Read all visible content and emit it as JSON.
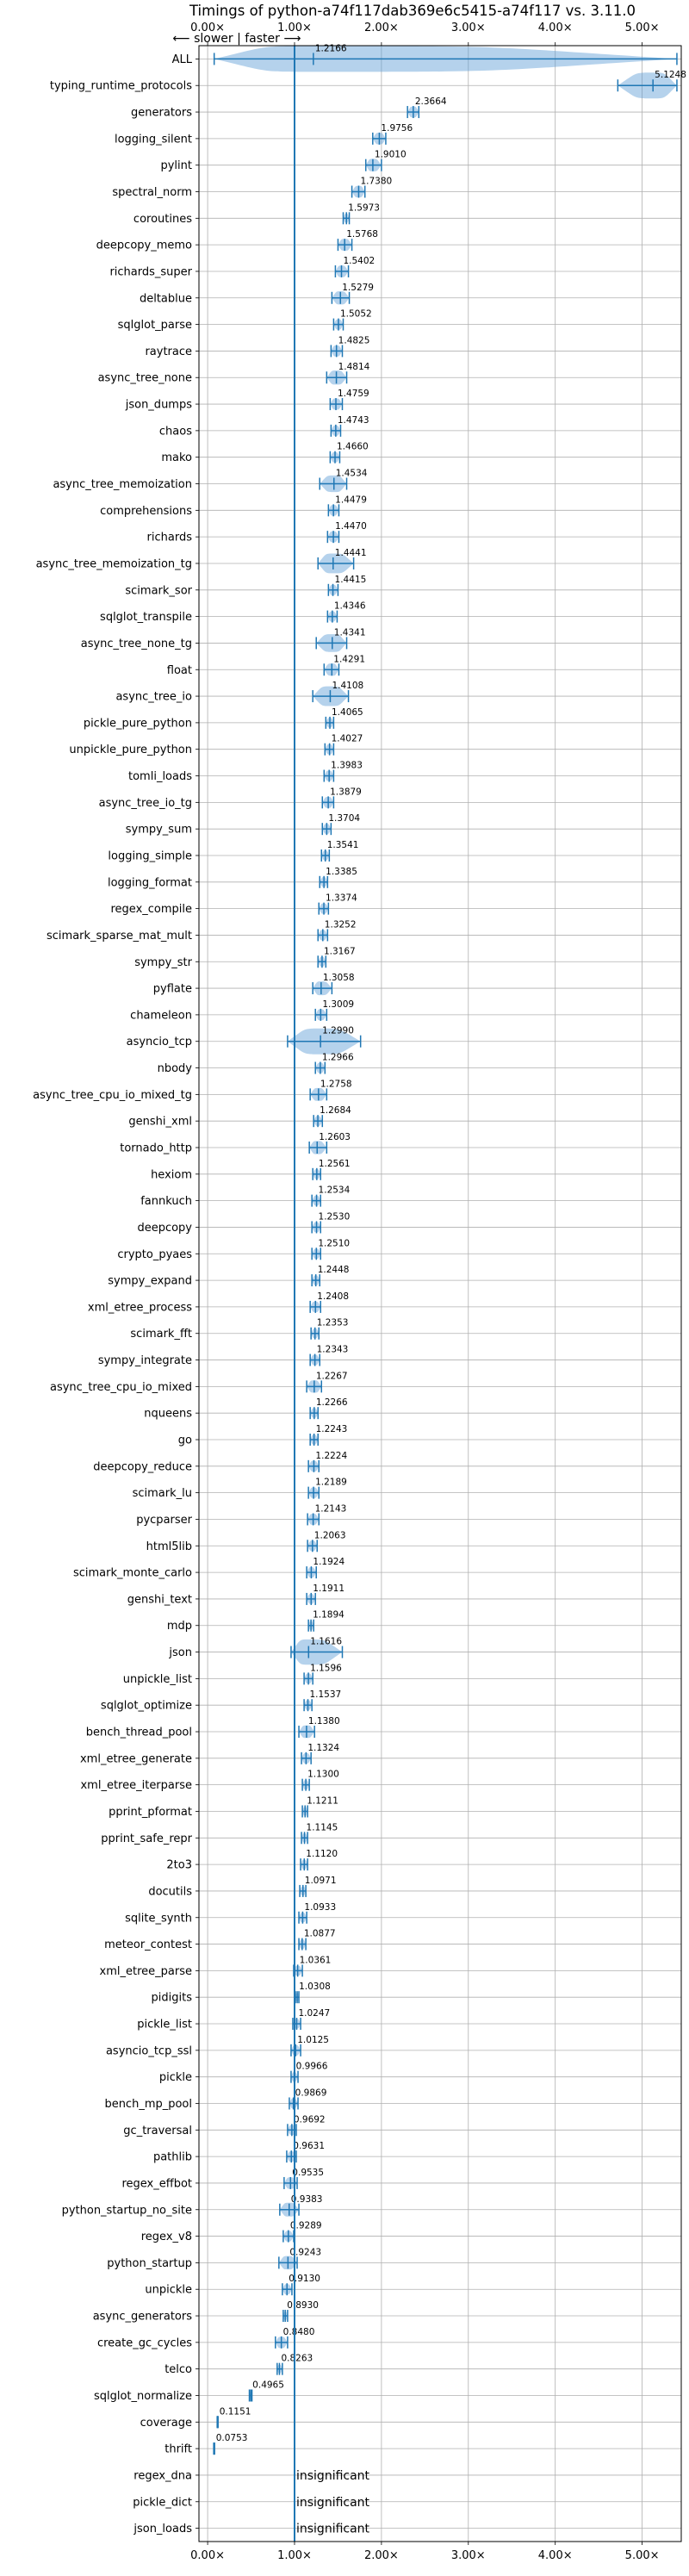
{
  "chart_data": {
    "type": "violin",
    "title": "Timings of python-a74f117dab369e6c5415-a74f117 vs. 3.11.0",
    "subtitle": "⟵ slower | faster ⟶",
    "xlabel": "",
    "ylabel": "",
    "xlim": [
      -0.1,
      5.45
    ],
    "x_ticks": [
      0.0,
      1.0,
      2.0,
      3.0,
      4.0,
      5.0
    ],
    "x_tick_labels": [
      "0.00×",
      "1.00×",
      "2.00×",
      "3.00×",
      "4.00×",
      "5.00×"
    ],
    "reference_line": 1.0,
    "grid": true,
    "colors": {
      "violin": "#5b9bd5",
      "line": "#1f77b4",
      "median": "#d62728"
    },
    "insignificant_label": "insignificant",
    "benchmarks": [
      {
        "name": "ALL",
        "value": 1.2166,
        "label": "1.2166",
        "min": 0.0753,
        "max": 5.4
      },
      {
        "name": "typing_runtime_protocols",
        "value": 5.1248,
        "label": "5.1248",
        "min": 4.72,
        "max": 5.4
      },
      {
        "name": "generators",
        "value": 2.3664,
        "label": "2.3664",
        "min": 2.3,
        "max": 2.43
      },
      {
        "name": "logging_silent",
        "value": 1.9756,
        "label": "1.9756",
        "min": 1.9,
        "max": 2.05
      },
      {
        "name": "pylint",
        "value": 1.901,
        "label": "1.9010",
        "min": 1.82,
        "max": 2.0
      },
      {
        "name": "spectral_norm",
        "value": 1.738,
        "label": "1.7380",
        "min": 1.66,
        "max": 1.81
      },
      {
        "name": "coroutines",
        "value": 1.5973,
        "label": "1.5973",
        "min": 1.56,
        "max": 1.63
      },
      {
        "name": "deepcopy_memo",
        "value": 1.5768,
        "label": "1.5768",
        "min": 1.5,
        "max": 1.66
      },
      {
        "name": "richards_super",
        "value": 1.5402,
        "label": "1.5402",
        "min": 1.47,
        "max": 1.62
      },
      {
        "name": "deltablue",
        "value": 1.5279,
        "label": "1.5279",
        "min": 1.43,
        "max": 1.63
      },
      {
        "name": "sqlglot_parse",
        "value": 1.5052,
        "label": "1.5052",
        "min": 1.45,
        "max": 1.56
      },
      {
        "name": "raytrace",
        "value": 1.4825,
        "label": "1.4825",
        "min": 1.42,
        "max": 1.55
      },
      {
        "name": "async_tree_none",
        "value": 1.4814,
        "label": "1.4814",
        "min": 1.37,
        "max": 1.6
      },
      {
        "name": "json_dumps",
        "value": 1.4759,
        "label": "1.4759",
        "min": 1.41,
        "max": 1.55
      },
      {
        "name": "chaos",
        "value": 1.4743,
        "label": "1.4743",
        "min": 1.42,
        "max": 1.53
      },
      {
        "name": "mako",
        "value": 1.466,
        "label": "1.4660",
        "min": 1.41,
        "max": 1.52
      },
      {
        "name": "async_tree_memoization",
        "value": 1.4534,
        "label": "1.4534",
        "min": 1.29,
        "max": 1.6
      },
      {
        "name": "comprehensions",
        "value": 1.4479,
        "label": "1.4479",
        "min": 1.39,
        "max": 1.51
      },
      {
        "name": "richards",
        "value": 1.447,
        "label": "1.4470",
        "min": 1.38,
        "max": 1.51
      },
      {
        "name": "async_tree_memoization_tg",
        "value": 1.4441,
        "label": "1.4441",
        "min": 1.27,
        "max": 1.68
      },
      {
        "name": "scimark_sor",
        "value": 1.4415,
        "label": "1.4415",
        "min": 1.39,
        "max": 1.5
      },
      {
        "name": "sqlglot_transpile",
        "value": 1.4346,
        "label": "1.4346",
        "min": 1.38,
        "max": 1.49
      },
      {
        "name": "async_tree_none_tg",
        "value": 1.4341,
        "label": "1.4341",
        "min": 1.25,
        "max": 1.6
      },
      {
        "name": "float",
        "value": 1.4291,
        "label": "1.4291",
        "min": 1.34,
        "max": 1.51
      },
      {
        "name": "async_tree_io",
        "value": 1.4108,
        "label": "1.4108",
        "min": 1.21,
        "max": 1.62
      },
      {
        "name": "pickle_pure_python",
        "value": 1.4065,
        "label": "1.4065",
        "min": 1.36,
        "max": 1.45
      },
      {
        "name": "unpickle_pure_python",
        "value": 1.4027,
        "label": "1.4027",
        "min": 1.35,
        "max": 1.45
      },
      {
        "name": "tomli_loads",
        "value": 1.3983,
        "label": "1.3983",
        "min": 1.34,
        "max": 1.45
      },
      {
        "name": "async_tree_io_tg",
        "value": 1.3879,
        "label": "1.3879",
        "min": 1.32,
        "max": 1.45
      },
      {
        "name": "sympy_sum",
        "value": 1.3704,
        "label": "1.3704",
        "min": 1.32,
        "max": 1.42
      },
      {
        "name": "logging_simple",
        "value": 1.3541,
        "label": "1.3541",
        "min": 1.31,
        "max": 1.4
      },
      {
        "name": "logging_format",
        "value": 1.3385,
        "label": "1.3385",
        "min": 1.29,
        "max": 1.38
      },
      {
        "name": "regex_compile",
        "value": 1.3374,
        "label": "1.3374",
        "min": 1.28,
        "max": 1.39
      },
      {
        "name": "scimark_sparse_mat_mult",
        "value": 1.3252,
        "label": "1.3252",
        "min": 1.27,
        "max": 1.38
      },
      {
        "name": "sympy_str",
        "value": 1.3167,
        "label": "1.3167",
        "min": 1.27,
        "max": 1.36
      },
      {
        "name": "pyflate",
        "value": 1.3058,
        "label": "1.3058",
        "min": 1.21,
        "max": 1.43
      },
      {
        "name": "chameleon",
        "value": 1.3009,
        "label": "1.3009",
        "min": 1.24,
        "max": 1.37
      },
      {
        "name": "asyncio_tcp",
        "value": 1.299,
        "label": "1.2990",
        "min": 0.92,
        "max": 1.76
      },
      {
        "name": "nbody",
        "value": 1.2966,
        "label": "1.2966",
        "min": 1.24,
        "max": 1.35
      },
      {
        "name": "async_tree_cpu_io_mixed_tg",
        "value": 1.2758,
        "label": "1.2758",
        "min": 1.18,
        "max": 1.37
      },
      {
        "name": "genshi_xml",
        "value": 1.2684,
        "label": "1.2684",
        "min": 1.22,
        "max": 1.32
      },
      {
        "name": "tornado_http",
        "value": 1.2603,
        "label": "1.2603",
        "min": 1.17,
        "max": 1.37
      },
      {
        "name": "hexiom",
        "value": 1.2561,
        "label": "1.2561",
        "min": 1.21,
        "max": 1.3
      },
      {
        "name": "fannkuch",
        "value": 1.2534,
        "label": "1.2534",
        "min": 1.2,
        "max": 1.3
      },
      {
        "name": "deepcopy",
        "value": 1.253,
        "label": "1.2530",
        "min": 1.2,
        "max": 1.3
      },
      {
        "name": "crypto_pyaes",
        "value": 1.251,
        "label": "1.2510",
        "min": 1.2,
        "max": 1.3
      },
      {
        "name": "sympy_expand",
        "value": 1.2448,
        "label": "1.2448",
        "min": 1.2,
        "max": 1.29
      },
      {
        "name": "xml_etree_process",
        "value": 1.2408,
        "label": "1.2408",
        "min": 1.18,
        "max": 1.3
      },
      {
        "name": "scimark_fft",
        "value": 1.2353,
        "label": "1.2353",
        "min": 1.19,
        "max": 1.28
      },
      {
        "name": "sympy_integrate",
        "value": 1.2343,
        "label": "1.2343",
        "min": 1.18,
        "max": 1.29
      },
      {
        "name": "async_tree_cpu_io_mixed",
        "value": 1.2267,
        "label": "1.2267",
        "min": 1.14,
        "max": 1.31
      },
      {
        "name": "nqueens",
        "value": 1.2266,
        "label": "1.2266",
        "min": 1.18,
        "max": 1.27
      },
      {
        "name": "go",
        "value": 1.2243,
        "label": "1.2243",
        "min": 1.18,
        "max": 1.27
      },
      {
        "name": "deepcopy_reduce",
        "value": 1.2224,
        "label": "1.2224",
        "min": 1.16,
        "max": 1.28
      },
      {
        "name": "scimark_lu",
        "value": 1.2189,
        "label": "1.2189",
        "min": 1.16,
        "max": 1.28
      },
      {
        "name": "pycparser",
        "value": 1.2143,
        "label": "1.2143",
        "min": 1.15,
        "max": 1.28
      },
      {
        "name": "html5lib",
        "value": 1.2063,
        "label": "1.2063",
        "min": 1.15,
        "max": 1.26
      },
      {
        "name": "scimark_monte_carlo",
        "value": 1.1924,
        "label": "1.1924",
        "min": 1.14,
        "max": 1.25
      },
      {
        "name": "genshi_text",
        "value": 1.1911,
        "label": "1.1911",
        "min": 1.14,
        "max": 1.24
      },
      {
        "name": "mdp",
        "value": 1.1894,
        "label": "1.1894",
        "min": 1.16,
        "max": 1.22
      },
      {
        "name": "json",
        "value": 1.1616,
        "label": "1.1616",
        "min": 0.96,
        "max": 1.55
      },
      {
        "name": "unpickle_list",
        "value": 1.1596,
        "label": "1.1596",
        "min": 1.11,
        "max": 1.21
      },
      {
        "name": "sqlglot_optimize",
        "value": 1.1537,
        "label": "1.1537",
        "min": 1.11,
        "max": 1.2
      },
      {
        "name": "bench_thread_pool",
        "value": 1.138,
        "label": "1.1380",
        "min": 1.05,
        "max": 1.23
      },
      {
        "name": "xml_etree_generate",
        "value": 1.1324,
        "label": "1.1324",
        "min": 1.08,
        "max": 1.19
      },
      {
        "name": "xml_etree_iterparse",
        "value": 1.13,
        "label": "1.1300",
        "min": 1.09,
        "max": 1.17
      },
      {
        "name": "pprint_pformat",
        "value": 1.1211,
        "label": "1.1211",
        "min": 1.09,
        "max": 1.15
      },
      {
        "name": "pprint_safe_repr",
        "value": 1.1145,
        "label": "1.1145",
        "min": 1.08,
        "max": 1.15
      },
      {
        "name": "2to3",
        "value": 1.112,
        "label": "1.1120",
        "min": 1.07,
        "max": 1.15
      },
      {
        "name": "docutils",
        "value": 1.0971,
        "label": "1.0971",
        "min": 1.06,
        "max": 1.13
      },
      {
        "name": "sqlite_synth",
        "value": 1.0933,
        "label": "1.0933",
        "min": 1.05,
        "max": 1.14
      },
      {
        "name": "meteor_contest",
        "value": 1.0877,
        "label": "1.0877",
        "min": 1.05,
        "max": 1.13
      },
      {
        "name": "xml_etree_parse",
        "value": 1.0361,
        "label": "1.0361",
        "min": 0.99,
        "max": 1.09
      },
      {
        "name": "pidigits",
        "value": 1.0308,
        "label": "1.0308",
        "min": 1.01,
        "max": 1.05
      },
      {
        "name": "pickle_list",
        "value": 1.0247,
        "label": "1.0247",
        "min": 0.98,
        "max": 1.07
      },
      {
        "name": "asyncio_tcp_ssl",
        "value": 1.0125,
        "label": "1.0125",
        "min": 0.96,
        "max": 1.07
      },
      {
        "name": "pickle",
        "value": 0.9966,
        "label": "0.9966",
        "min": 0.96,
        "max": 1.04
      },
      {
        "name": "bench_mp_pool",
        "value": 0.9869,
        "label": "0.9869",
        "min": 0.94,
        "max": 1.04
      },
      {
        "name": "gc_traversal",
        "value": 0.9692,
        "label": "0.9692",
        "min": 0.92,
        "max": 1.02
      },
      {
        "name": "pathlib",
        "value": 0.9631,
        "label": "0.9631",
        "min": 0.91,
        "max": 1.02
      },
      {
        "name": "regex_effbot",
        "value": 0.9535,
        "label": "0.9535",
        "min": 0.88,
        "max": 1.03
      },
      {
        "name": "python_startup_no_site",
        "value": 0.9383,
        "label": "0.9383",
        "min": 0.83,
        "max": 1.05
      },
      {
        "name": "regex_v8",
        "value": 0.9289,
        "label": "0.9289",
        "min": 0.87,
        "max": 0.99
      },
      {
        "name": "python_startup",
        "value": 0.9243,
        "label": "0.9243",
        "min": 0.82,
        "max": 1.03
      },
      {
        "name": "unpickle",
        "value": 0.913,
        "label": "0.9130",
        "min": 0.86,
        "max": 0.97
      },
      {
        "name": "async_generators",
        "value": 0.893,
        "label": "0.8930",
        "min": 0.87,
        "max": 0.92
      },
      {
        "name": "create_gc_cycles",
        "value": 0.848,
        "label": "0.8480",
        "min": 0.78,
        "max": 0.92
      },
      {
        "name": "telco",
        "value": 0.8263,
        "label": "0.8263",
        "min": 0.8,
        "max": 0.86
      },
      {
        "name": "sqlglot_normalize",
        "value": 0.4965,
        "label": "0.4965",
        "min": 0.48,
        "max": 0.51
      },
      {
        "name": "coverage",
        "value": 0.1151,
        "label": "0.1151",
        "min": 0.11,
        "max": 0.12
      },
      {
        "name": "thrift",
        "value": 0.0753,
        "label": "0.0753",
        "min": 0.07,
        "max": 0.08
      },
      {
        "name": "regex_dna",
        "value": null,
        "label": "insignificant"
      },
      {
        "name": "pickle_dict",
        "value": null,
        "label": "insignificant"
      },
      {
        "name": "json_loads",
        "value": null,
        "label": "insignificant"
      }
    ]
  }
}
